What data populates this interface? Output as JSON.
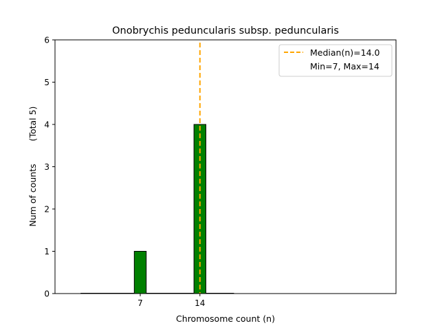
{
  "chart_data": {
    "type": "bar",
    "title": "Onobrychis peduncularis subsp. peduncularis",
    "xlabel": "Chromosome count (n)",
    "ylabel_main": "Num of counts",
    "ylabel_total": "(Total 5)",
    "xlim": [
      -3,
      37
    ],
    "ylim": [
      0,
      6
    ],
    "x_ticks": [
      7,
      14
    ],
    "y_ticks": [
      0,
      1,
      2,
      3,
      4,
      5,
      6
    ],
    "bar_width": 1.4,
    "x": [
      7,
      14
    ],
    "values": [
      1,
      4
    ],
    "baseline_range": [
      0,
      18
    ],
    "bar_color": "#008000",
    "bar_edge_color": "#000000",
    "median": 14.0,
    "median_color": "#ffa500",
    "legend": {
      "position": "top-right",
      "median_label": "Median(n)=14.0",
      "minmax_label": "Min=7, Max=14"
    }
  }
}
